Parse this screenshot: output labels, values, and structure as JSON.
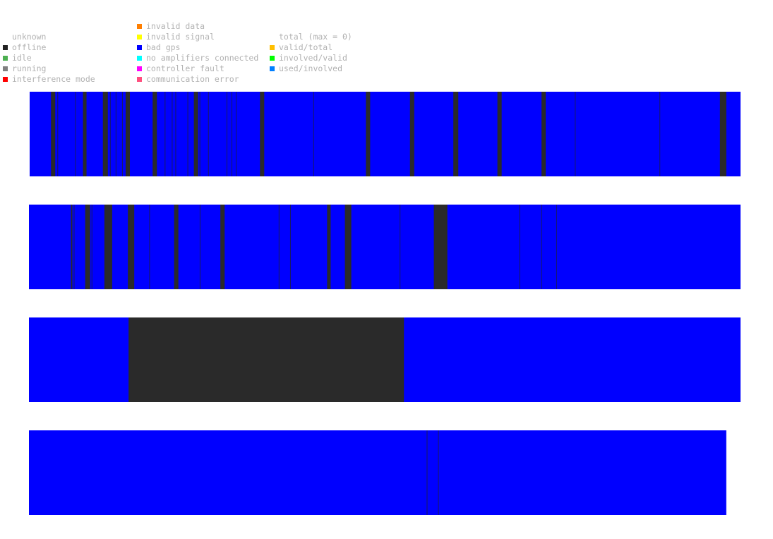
{
  "legend": {
    "groups": [
      [
        {
          "label": "unknown",
          "color": null
        },
        {
          "label": "offline",
          "color": "#222222"
        },
        {
          "label": "idle",
          "color": "#4caf50"
        },
        {
          "label": "running",
          "color": "#808080"
        },
        {
          "label": "interference mode",
          "color": "#ff0000"
        }
      ],
      [
        {
          "label": "invalid data",
          "color": "#ff7f00"
        },
        {
          "label": "invalid signal",
          "color": "#ffff00"
        },
        {
          "label": "bad gps",
          "color": "#0000ff"
        },
        {
          "label": "no amplifiers connected",
          "color": "#00ffff"
        },
        {
          "label": "controller fault",
          "color": "#ff00ff"
        },
        {
          "label": "communication error",
          "color": "#ff4f7f"
        }
      ],
      [
        {
          "label": "total (max = 0)",
          "color": null
        },
        {
          "label": "valid/total",
          "color": "#ffbf00"
        },
        {
          "label": "involved/valid",
          "color": "#00ff00"
        },
        {
          "label": "used/involved",
          "color": "#007fff"
        }
      ]
    ]
  },
  "chart_data": {
    "type": "heatmap",
    "base_color": "#0000ff",
    "offline_color": "#2a2a2a",
    "separator_color": "#1a1a60",
    "rows": [
      {
        "offline": [
          [
            3.0,
            3.6
          ],
          [
            7.5,
            8.0
          ],
          [
            10.3,
            11.0
          ],
          [
            13.5,
            14.1
          ],
          [
            17.3,
            17.9
          ],
          [
            23.1,
            23.7
          ],
          [
            32.4,
            33.0
          ],
          [
            47.3,
            47.9
          ],
          [
            53.5,
            54.1
          ],
          [
            59.6,
            60.3
          ],
          [
            65.8,
            66.4
          ],
          [
            72.0,
            72.6
          ],
          [
            97.1,
            98.0
          ]
        ],
        "separators": [
          3.9,
          6.4,
          11.3,
          12.1,
          13.0,
          19.0,
          20.0,
          20.5,
          22.2,
          23.9,
          25.1,
          27.7,
          28.4,
          29.0,
          39.9,
          76.7,
          88.6
        ]
      },
      {
        "offline": [
          [
            5.9,
            6.1
          ],
          [
            7.9,
            8.6
          ],
          [
            10.6,
            11.7
          ],
          [
            13.9,
            14.8
          ],
          [
            20.4,
            21.0
          ],
          [
            26.9,
            27.5
          ],
          [
            41.9,
            42.4
          ],
          [
            44.4,
            45.3
          ],
          [
            56.9,
            58.8
          ]
        ],
        "separators": [
          6.3,
          8.8,
          16.9,
          24.0,
          35.1,
          36.7,
          52.1,
          68.9,
          72.0,
          74.1
        ]
      },
      {
        "offline": [
          [
            14.0,
            52.7
          ]
        ],
        "separators": []
      },
      {
        "offline": [],
        "separators": [
          55.9,
          57.5
        ],
        "end": 98.0
      }
    ]
  }
}
